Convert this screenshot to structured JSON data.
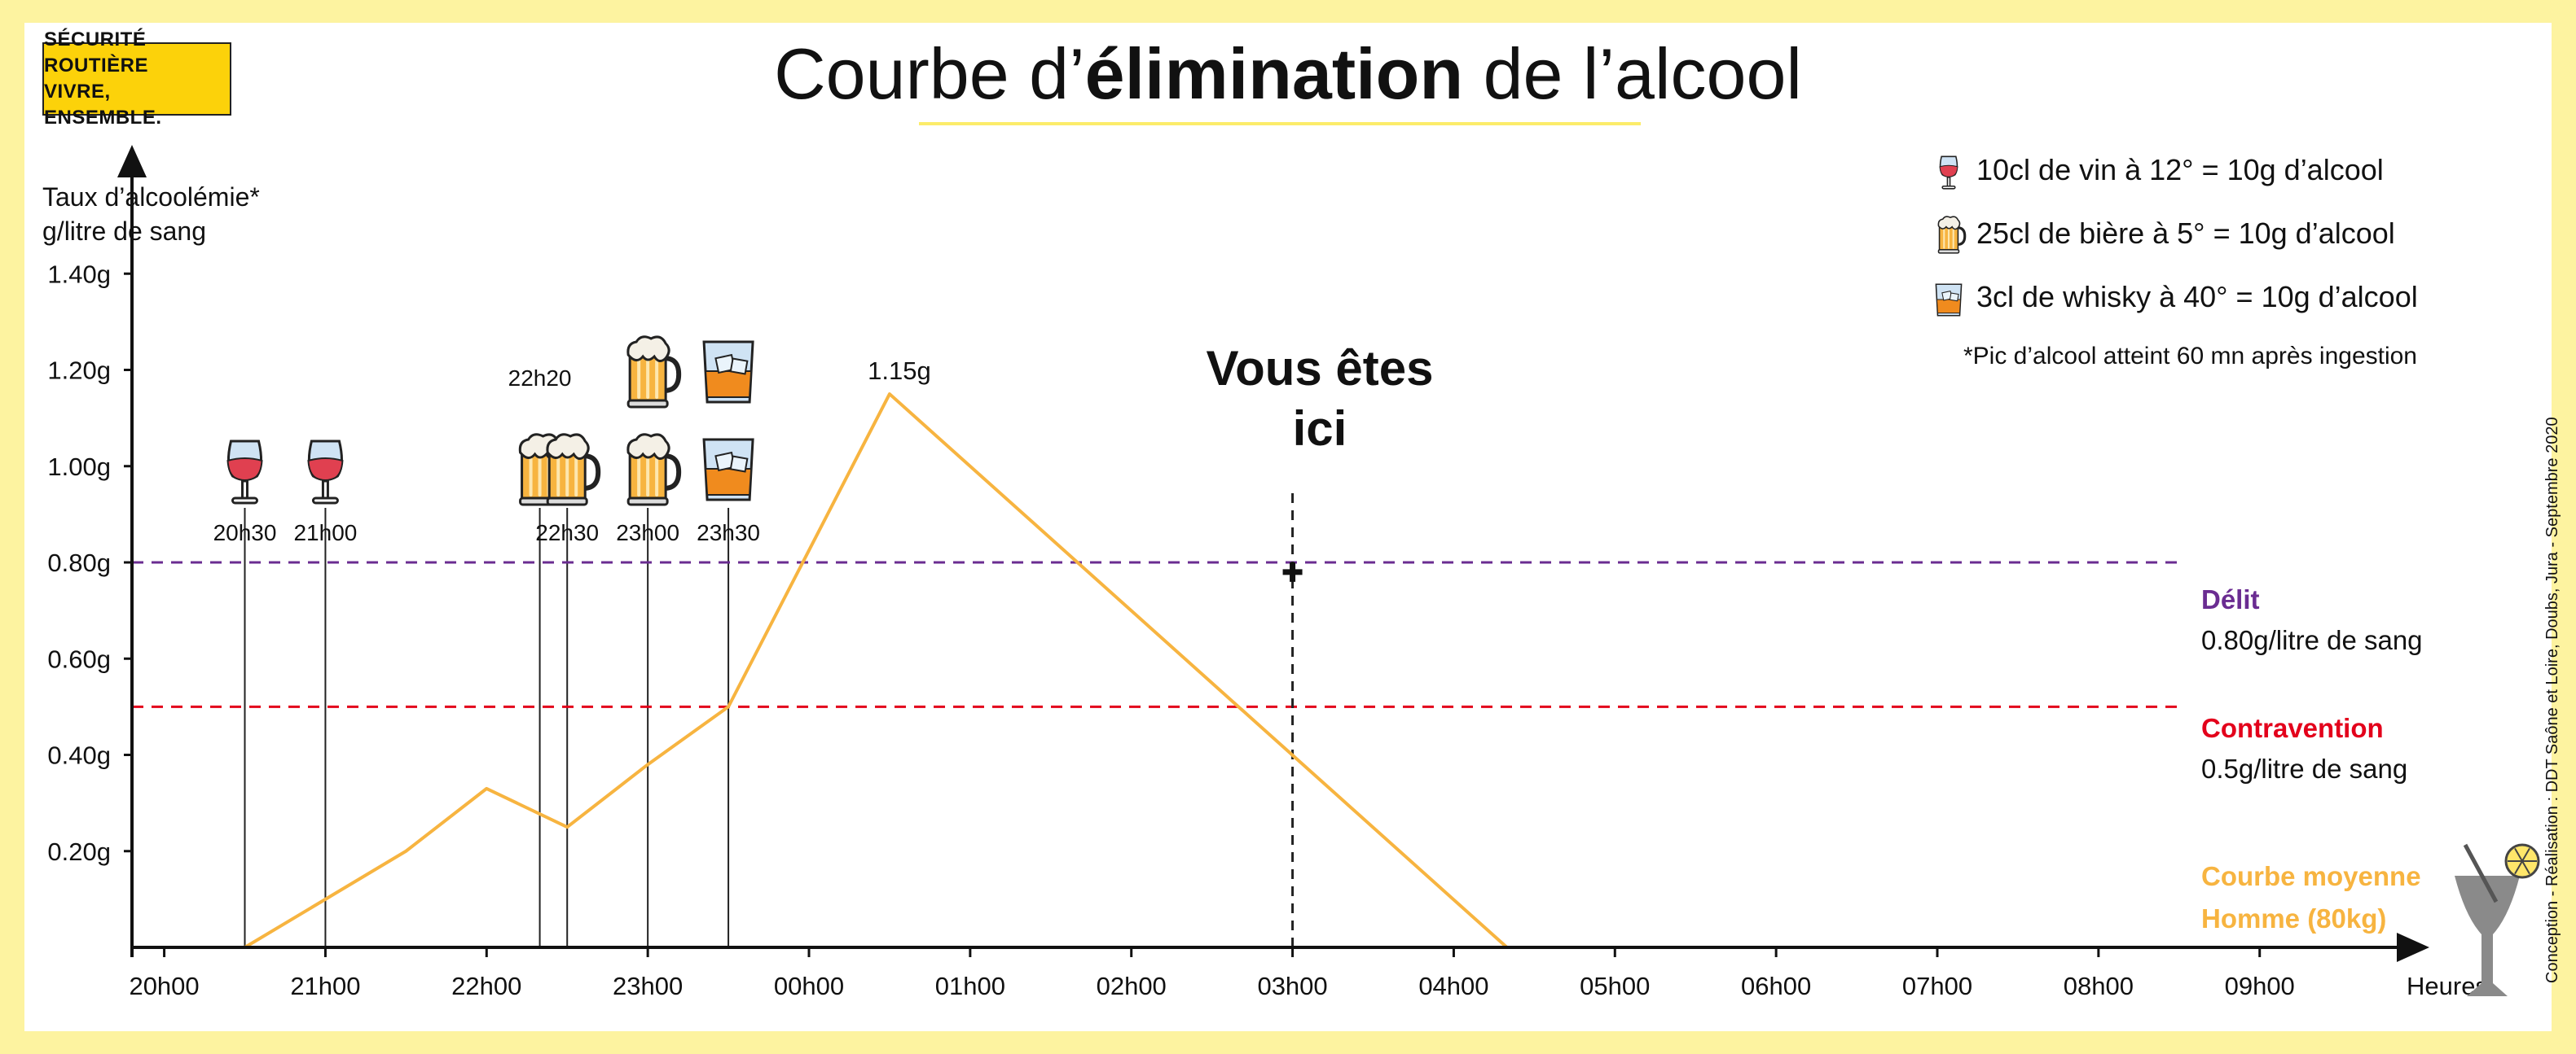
{
  "logo": {
    "line1": "SÉCURITÉ ROUTIÈRE",
    "line2": "VIVRE, ENSEMBLE."
  },
  "credit": "Conception - Réalisation : DDT Saône et Loire, Doubs, Jura - Septembre 2020",
  "chart_data": {
    "type": "line",
    "title_pre": "Courbe d’",
    "title_bold": "élimination",
    "title_post": " de l’alcool",
    "ylabel_line1": "Taux d’alcoolémie*",
    "ylabel_line2": "g/litre de sang",
    "xlabel": "Heures",
    "x_ticks": [
      "20h00",
      "21h00",
      "22h00",
      "23h00",
      "00h00",
      "01h00",
      "02h00",
      "03h00",
      "04h00",
      "05h00",
      "06h00",
      "07h00",
      "08h00",
      "09h00"
    ],
    "y_ticks": [
      {
        "value": 0.2,
        "label": "0.20g"
      },
      {
        "value": 0.4,
        "label": "0.40g"
      },
      {
        "value": 0.6,
        "label": "0.60g"
      },
      {
        "value": 0.8,
        "label": "0.80g"
      },
      {
        "value": 1.0,
        "label": "1.00g"
      },
      {
        "value": 1.2,
        "label": "1.20g"
      },
      {
        "value": 1.4,
        "label": "1.40g"
      }
    ],
    "xlim": [
      -0.2,
      13.8
    ],
    "ylim": [
      0,
      1.6
    ],
    "series": [
      {
        "name": "Courbe moyenne Homme (80kg)",
        "color": "#f7b440",
        "points": [
          {
            "x": 0.5,
            "y": 0
          },
          {
            "x": 1.0,
            "y": 0.1
          },
          {
            "x": 1.5,
            "y": 0.2
          },
          {
            "x": 2.0,
            "y": 0.33
          },
          {
            "x": 2.5,
            "y": 0.25
          },
          {
            "x": 3.0,
            "y": 0.38
          },
          {
            "x": 3.5,
            "y": 0.5
          },
          {
            "x": 4.5,
            "y": 1.15
          },
          {
            "x": 8.33,
            "y": 0
          }
        ]
      }
    ],
    "peak": {
      "x": 4.5,
      "y": 1.15,
      "label": "1.15g"
    },
    "you_are_here": {
      "x": 7.0,
      "y": 0.78,
      "label_line1": "Vous êtes",
      "label_line2": "ici"
    },
    "thresholds": [
      {
        "value": 0.8,
        "color": "#6a2c91",
        "label": "Délit",
        "sublabel": "0.80g/litre de sang"
      },
      {
        "value": 0.5,
        "color": "#e3001b",
        "label": "Contravention",
        "sublabel": "0.5g/litre de sang"
      }
    ],
    "series_label": {
      "line1": "Courbe moyenne",
      "line2": "Homme (80kg)",
      "color": "#f7b440"
    },
    "drinks": [
      {
        "time": 0.5,
        "label": "20h30",
        "type": "wine",
        "count": 1
      },
      {
        "time": 1.0,
        "label": "21h00",
        "type": "wine",
        "count": 1
      },
      {
        "time": 2.33,
        "label": "22h20",
        "type": "beer",
        "count": 1
      },
      {
        "time": 2.5,
        "label": "22h30",
        "type": "beer",
        "count": 1
      },
      {
        "time": 3.0,
        "label": "23h00",
        "type": "beer",
        "count": 2
      },
      {
        "time": 3.5,
        "label": "23h30",
        "type": "whisky",
        "count": 2
      }
    ],
    "legend": [
      {
        "icon": "wine",
        "text": "10cl de vin à 12° = 10g d’alcool"
      },
      {
        "icon": "beer",
        "text": "25cl de bière à 5° = 10g d’alcool"
      },
      {
        "icon": "whisky",
        "text": "3cl de whisky à 40° = 10g d’alcool"
      }
    ],
    "note": "*Pic d’alcool atteint 60 mn après ingestion"
  }
}
